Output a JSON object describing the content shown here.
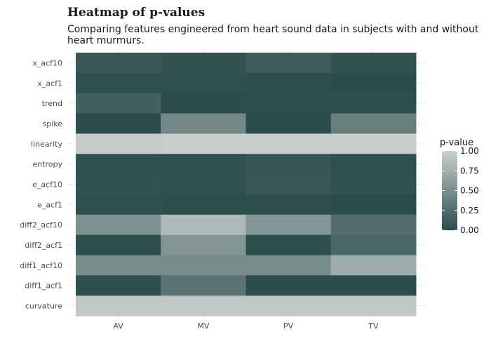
{
  "chart_data": {
    "type": "heatmap",
    "title": "Heatmap of p-values",
    "subtitle": "Comparing features engineered from heart sound data in subjects with and without heart murmurs.",
    "xlabel": "",
    "ylabel": "",
    "x_categories": [
      "AV",
      "MV",
      "PV",
      "TV"
    ],
    "y_categories": [
      "x_acf10",
      "x_acf1",
      "trend",
      "spike",
      "linearity",
      "entropy",
      "e_acf10",
      "e_acf1",
      "diff2_acf10",
      "diff2_acf1",
      "diff1_acf10",
      "diff1_acf1",
      "curvature"
    ],
    "values": [
      [
        0.08,
        0.05,
        0.12,
        0.05
      ],
      [
        0.04,
        0.03,
        0.02,
        0.01
      ],
      [
        0.15,
        0.01,
        0.02,
        0.02
      ],
      [
        0.01,
        0.45,
        0.01,
        0.38
      ],
      [
        0.96,
        0.97,
        0.97,
        0.97
      ],
      [
        0.04,
        0.03,
        0.07,
        0.04
      ],
      [
        0.05,
        0.04,
        0.08,
        0.05
      ],
      [
        0.03,
        0.02,
        0.02,
        0.01
      ],
      [
        0.52,
        0.82,
        0.55,
        0.25
      ],
      [
        0.02,
        0.55,
        0.02,
        0.2
      ],
      [
        0.48,
        0.48,
        0.48,
        0.72
      ],
      [
        0.02,
        0.3,
        0.01,
        0.01
      ],
      [
        0.93,
        0.93,
        0.93,
        0.93
      ]
    ],
    "legend": {
      "title": "p-value",
      "ticks": [
        "1.00",
        "0.75",
        "0.50",
        "0.25",
        "0.00"
      ],
      "placement": "right"
    },
    "color_scale": {
      "low": "#2b4c4b",
      "high": "#cbd1d0",
      "domain": [
        0,
        1
      ]
    },
    "grid": true
  }
}
